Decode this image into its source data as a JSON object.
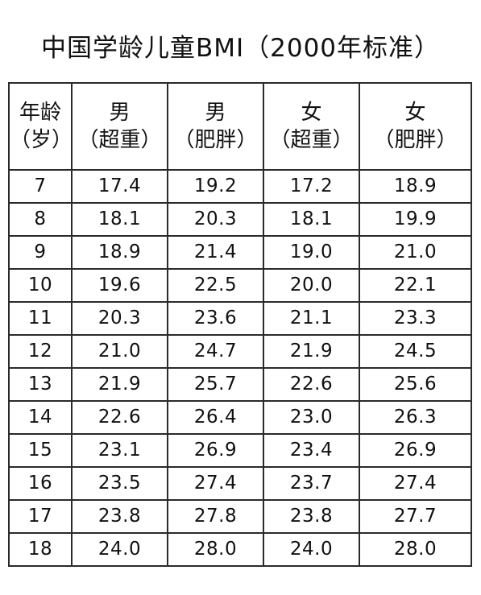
{
  "title": "中国学龄儿童BMI（2000年标准）",
  "table": {
    "headers": [
      {
        "line1": "年龄",
        "line2": "（岁）"
      },
      {
        "line1": "男",
        "line2": "（超重）"
      },
      {
        "line1": "男",
        "line2": "（肥胖）"
      },
      {
        "line1": "女",
        "line2": "（超重）"
      },
      {
        "line1": "女",
        "line2": "（肥胖）"
      }
    ],
    "rows": [
      [
        "7",
        "17.4",
        "19.2",
        "17.2",
        "18.9"
      ],
      [
        "8",
        "18.1",
        "20.3",
        "18.1",
        "19.9"
      ],
      [
        "9",
        "18.9",
        "21.4",
        "19.0",
        "21.0"
      ],
      [
        "10",
        "19.6",
        "22.5",
        "20.0",
        "22.1"
      ],
      [
        "11",
        "20.3",
        "23.6",
        "21.1",
        "23.3"
      ],
      [
        "12",
        "21.0",
        "24.7",
        "21.9",
        "24.5"
      ],
      [
        "13",
        "21.9",
        "25.7",
        "22.6",
        "25.6"
      ],
      [
        "14",
        "22.6",
        "26.4",
        "23.0",
        "26.3"
      ],
      [
        "15",
        "23.1",
        "26.9",
        "23.4",
        "26.9"
      ],
      [
        "16",
        "23.5",
        "27.4",
        "23.7",
        "27.4"
      ],
      [
        "17",
        "23.8",
        "27.8",
        "23.8",
        "27.7"
      ],
      [
        "18",
        "24.0",
        "28.0",
        "24.0",
        "28.0"
      ]
    ]
  }
}
